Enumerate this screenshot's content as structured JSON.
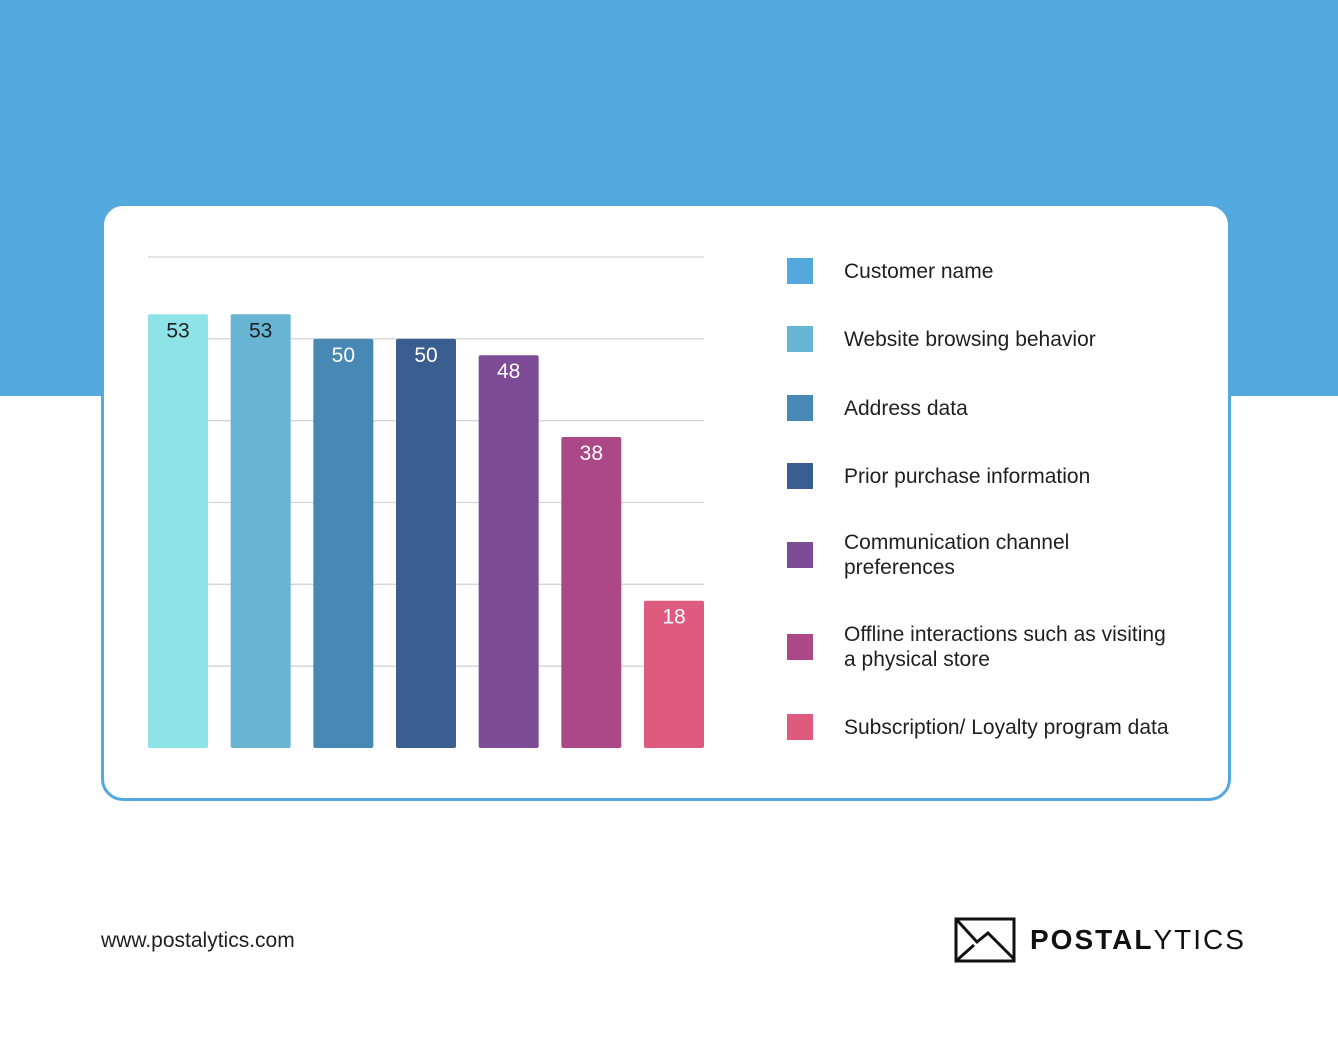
{
  "chart_data": {
    "type": "bar",
    "categories": [
      "Customer name",
      "Website browsing behavior",
      "Address data",
      "Prior purchase information",
      "Communication channel preferences",
      "Offline interactions such as visiting a physical store",
      "Subscription/ Loyalty program data"
    ],
    "values": [
      53,
      53,
      50,
      50,
      48,
      38,
      18
    ],
    "colors": [
      "#8ee3e8",
      "#67b4d3",
      "#4788b5",
      "#3b5e90",
      "#7e4b96",
      "#ad4888",
      "#de5a7e"
    ],
    "label_colors": [
      "#1f1f1f",
      "#1f1f1f",
      "#ffffff",
      "#ffffff",
      "#ffffff",
      "#ffffff",
      "#ffffff"
    ],
    "ylim": [
      0,
      60
    ],
    "gridlines": [
      10,
      20,
      30,
      40,
      50,
      60
    ],
    "grid": true,
    "legend_position": "right",
    "title": "",
    "xlabel": "",
    "ylabel": ""
  },
  "footer": {
    "url": "www.postalytics.com",
    "logo_bold": "POSTAL",
    "logo_light": "YTICS",
    "logo_icon": "envelope-chart-icon"
  }
}
